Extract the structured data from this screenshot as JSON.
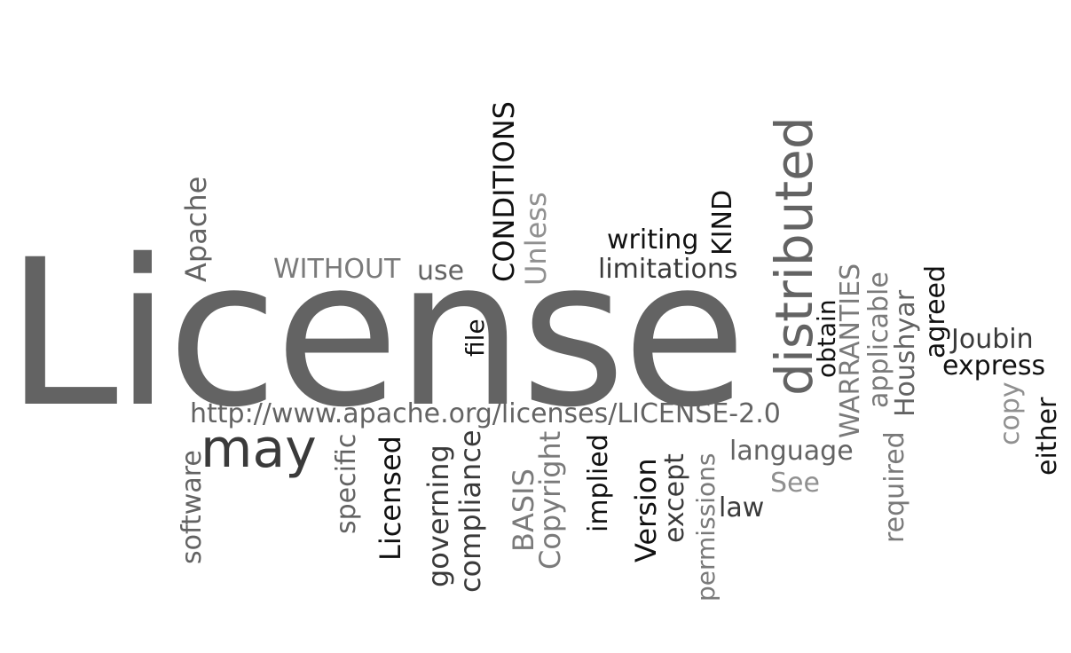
{
  "words": [
    {
      "text": "License",
      "color": "#636363"
    },
    {
      "text": "http://www.apache.org/licenses/LICENSE-2.0",
      "color": "#636363"
    },
    {
      "text": "may",
      "color": "#3a3a3a"
    },
    {
      "text": "distributed",
      "color": "#636363"
    },
    {
      "text": "CONDITIONS",
      "color": "#111111"
    },
    {
      "text": "WITHOUT",
      "color": "#7a7a7a"
    },
    {
      "text": "use",
      "color": "#636363"
    },
    {
      "text": "Apache",
      "color": "#636363"
    },
    {
      "text": "Unless",
      "color": "#909090"
    },
    {
      "text": "writing",
      "color": "#111111"
    },
    {
      "text": "limitations",
      "color": "#3a3a3a"
    },
    {
      "text": "KIND",
      "color": "#111111"
    },
    {
      "text": "file",
      "color": "#111111"
    },
    {
      "text": "obtain",
      "color": "#111111"
    },
    {
      "text": "WARRANTIES",
      "color": "#7a7a7a"
    },
    {
      "text": "applicable",
      "color": "#7a7a7a"
    },
    {
      "text": "Houshyar",
      "color": "#636363"
    },
    {
      "text": "agreed",
      "color": "#111111"
    },
    {
      "text": "Joubin",
      "color": "#3a3a3a"
    },
    {
      "text": "express",
      "color": "#111111"
    },
    {
      "text": "copy",
      "color": "#909090"
    },
    {
      "text": "either",
      "color": "#111111"
    },
    {
      "text": "software",
      "color": "#636363"
    },
    {
      "text": "specific",
      "color": "#636363"
    },
    {
      "text": "Licensed",
      "color": "#111111"
    },
    {
      "text": "governing",
      "color": "#3a3a3a"
    },
    {
      "text": "compliance",
      "color": "#3a3a3a"
    },
    {
      "text": "BASIS",
      "color": "#7a7a7a"
    },
    {
      "text": "Copyright",
      "color": "#7a7a7a"
    },
    {
      "text": "implied",
      "color": "#111111"
    },
    {
      "text": "Version",
      "color": "#111111"
    },
    {
      "text": "except",
      "color": "#3a3a3a"
    },
    {
      "text": "permissions",
      "color": "#7a7a7a"
    },
    {
      "text": "language",
      "color": "#636363"
    },
    {
      "text": "See",
      "color": "#909090"
    },
    {
      "text": "law",
      "color": "#3a3a3a"
    },
    {
      "text": "required",
      "color": "#7a7a7a"
    }
  ]
}
